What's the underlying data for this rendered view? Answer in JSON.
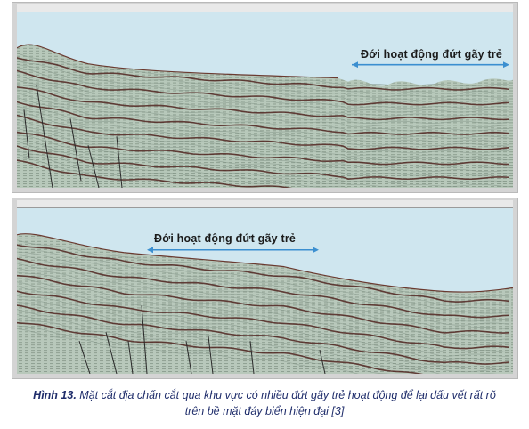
{
  "figure": {
    "top_panel": {
      "annotation": "Đới hoạt động đứt gãy trẻ"
    },
    "bottom_panel": {
      "annotation": "Đới hoạt động đứt gãy trẻ"
    },
    "colors": {
      "water": "#cfe6ef",
      "sediment": "#b9c9bb",
      "reflector_dark": "#4a1a16",
      "arrow": "#3b8fd0",
      "caption": "#1f2d6b"
    },
    "caption": {
      "label": "Hình 13.",
      "line1": "Mặt cắt địa chấn cắt qua khu vực có nhiều đứt gãy trẻ hoạt động để lại dấu vết rất rõ",
      "line2": "trên bề mặt đáy biển hiện đại [3]"
    }
  }
}
